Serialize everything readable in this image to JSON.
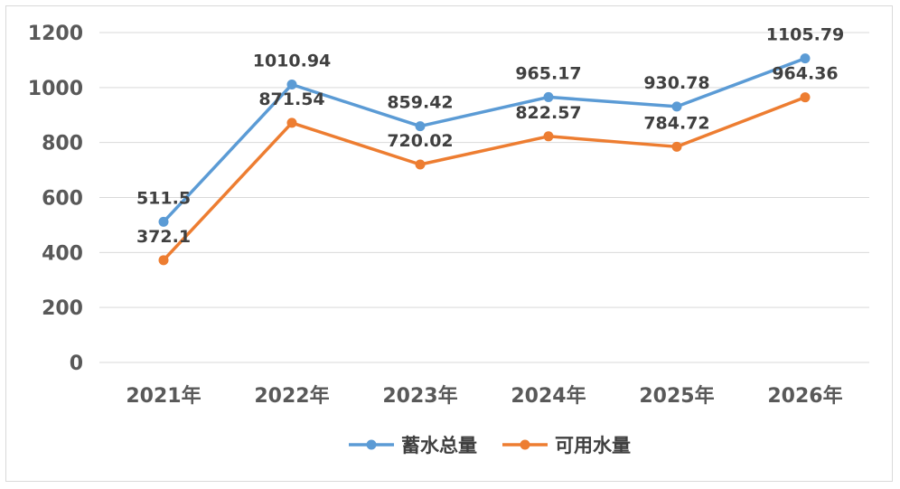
{
  "chart_data": {
    "type": "line",
    "title": "",
    "xlabel": "",
    "ylabel": "",
    "categories": [
      "2021年",
      "2022年",
      "2023年",
      "2024年",
      "2025年",
      "2026年"
    ],
    "ylim": [
      0,
      1200
    ],
    "yticks": [
      0,
      200,
      400,
      600,
      800,
      1000,
      1200
    ],
    "grid": true,
    "legend_position": "bottom",
    "series": [
      {
        "name": "蓄水总量",
        "color": "#5b9bd5",
        "values": [
          511.5,
          1010.94,
          859.42,
          965.17,
          930.78,
          1105.79
        ],
        "labels": [
          "511.5",
          "1010.94",
          "859.42",
          "965.17",
          "930.78",
          "1105.79"
        ]
      },
      {
        "name": "可用水量",
        "color": "#ed7d31",
        "values": [
          372.1,
          871.54,
          720.02,
          822.57,
          784.72,
          964.36
        ],
        "labels": [
          "372.1",
          "871.54",
          "720.02",
          "822.57",
          "784.72",
          "964.36"
        ]
      }
    ]
  }
}
